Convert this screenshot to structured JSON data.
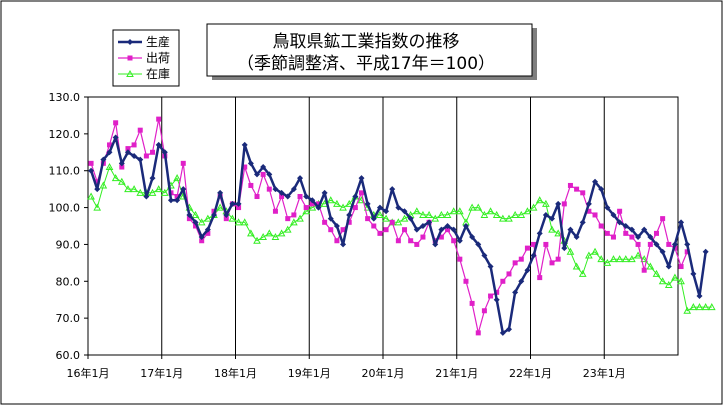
{
  "chart_data": {
    "type": "line",
    "title": "鳥取県鉱工業指数の推移",
    "subtitle": "（季節調整済、平成17年＝100）",
    "y_ticks": [
      "130.0",
      "120.0",
      "110.0",
      "100.0",
      "90.0",
      "80.0",
      "70.0",
      "60.0"
    ],
    "ylim": [
      60,
      130
    ],
    "x_ticks": [
      "16年1月",
      "17年1月",
      "18年1月",
      "19年1月",
      "20年1月",
      "21年1月",
      "22年1月",
      "23年1月"
    ],
    "months_per_year": 12,
    "grid": "vertical lines at each January",
    "legend": "top-left",
    "series": [
      {
        "name": "生産",
        "color": "#1a2a7a",
        "marker": "diamond",
        "values": [
          110,
          105,
          113,
          115,
          119,
          112,
          115,
          114,
          113,
          103,
          108,
          117,
          115,
          102,
          102,
          105,
          98,
          96,
          92,
          94,
          98,
          104,
          98,
          101,
          101,
          117,
          112,
          109,
          111,
          109,
          105,
          104,
          103,
          105,
          108,
          103,
          102,
          100,
          104,
          97,
          95,
          90,
          98,
          103,
          108,
          101,
          97,
          100,
          99,
          105,
          100,
          99,
          97,
          94,
          95,
          96,
          90,
          94,
          95,
          94,
          91,
          95,
          92,
          90,
          87,
          84,
          75,
          66,
          67,
          77,
          80,
          83,
          87,
          93,
          98,
          97,
          101,
          89,
          94,
          92,
          96,
          101,
          107,
          105,
          100,
          98,
          96,
          95,
          94,
          92,
          94,
          92,
          90,
          88,
          84,
          90,
          96,
          90,
          82,
          76,
          88
        ]
      },
      {
        "name": "出荷",
        "color": "#e020c8",
        "marker": "square",
        "values": [
          112,
          107,
          112,
          117,
          123,
          111,
          116,
          117,
          121,
          114,
          115,
          124,
          114,
          104,
          103,
          112,
          97,
          95,
          91,
          93,
          99,
          103,
          97,
          101,
          100,
          111,
          106,
          103,
          109,
          105,
          99,
          103,
          97,
          98,
          103,
          100,
          101,
          101,
          96,
          94,
          91,
          94,
          96,
          100,
          104,
          97,
          95,
          93,
          94,
          96,
          91,
          94,
          91,
          90,
          92,
          96,
          91,
          92,
          94,
          91,
          86,
          80,
          74,
          66,
          72,
          76,
          77,
          80,
          82,
          85,
          86,
          89,
          90,
          81,
          90,
          85,
          86,
          101,
          106,
          105,
          104,
          99,
          98,
          95,
          93,
          92,
          99,
          93,
          92,
          90,
          83,
          90,
          93,
          97,
          90,
          89,
          84,
          88
        ]
      },
      {
        "name": "在庫",
        "color": "#33ee22",
        "marker": "triangle",
        "values": [
          103,
          100,
          106,
          111,
          108,
          107,
          105,
          105,
          104,
          104,
          104,
          105,
          104,
          106,
          108,
          103,
          100,
          98,
          96,
          97,
          98,
          100,
          99,
          97,
          96,
          96,
          93,
          91,
          92,
          93,
          92,
          93,
          94,
          96,
          97,
          99,
          100,
          101,
          101,
          102,
          101,
          100,
          101,
          103,
          102,
          100,
          98,
          98,
          97,
          96,
          96,
          97,
          98,
          99,
          98,
          98,
          97,
          98,
          98,
          99,
          99,
          96,
          100,
          100,
          98,
          99,
          98,
          97,
          97,
          98,
          98,
          99,
          100,
          102,
          101,
          94,
          93,
          91,
          88,
          84,
          82,
          87,
          88,
          86,
          85,
          86,
          86,
          86,
          86,
          87,
          86,
          84,
          82,
          80,
          79,
          81,
          80,
          72,
          73,
          73,
          73,
          73
        ]
      }
    ]
  }
}
